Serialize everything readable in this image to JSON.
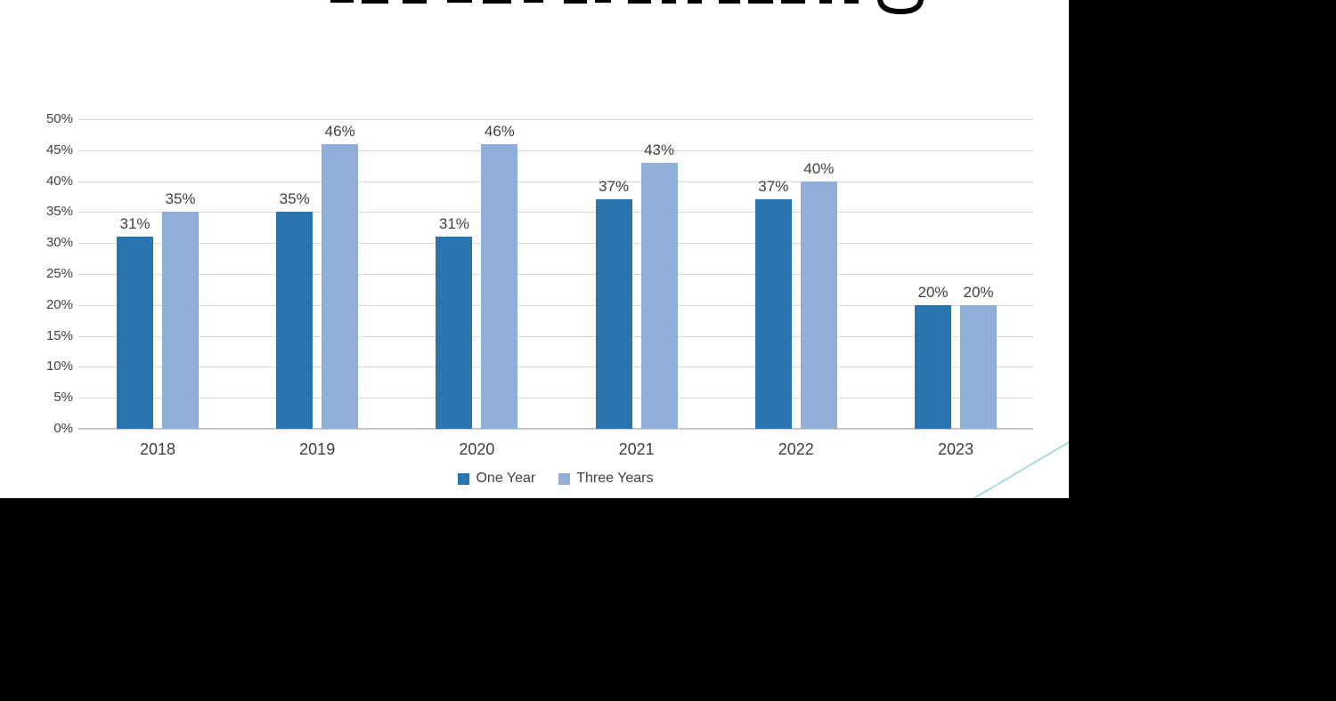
{
  "chart_data": {
    "type": "bar",
    "categories": [
      "2018",
      "2019",
      "2020",
      "2021",
      "2022",
      "2023"
    ],
    "series": [
      {
        "name": "One Year",
        "color": "#2A73AE",
        "values": [
          31,
          35,
          31,
          37,
          37,
          20
        ]
      },
      {
        "name": "Three Years",
        "color": "#8FAFD8",
        "values": [
          35,
          46,
          46,
          43,
          40,
          20
        ]
      }
    ],
    "value_suffix": "%",
    "data_labels": true,
    "y_ticks": [
      "0%",
      "5%",
      "10%",
      "15%",
      "20%",
      "25%",
      "30%",
      "35%",
      "40%",
      "45%",
      "50%"
    ],
    "ylim": [
      0,
      50
    ],
    "xlabel": "",
    "ylabel": "",
    "grid": true,
    "legend_position": "bottom",
    "note": "slide title cut off at top edge; only letter fragments visible"
  },
  "colors": {
    "background": "#FFFFFF",
    "letterbox": "#000000",
    "gridline": "#D9D9D9",
    "axis_line": "#C8C8C8",
    "text": "#404040",
    "series_dark_blue": "#2A73AE",
    "series_light_blue": "#8FAFD8",
    "deco_line_teal": "#A8D7E0",
    "title_fragment": "#000000"
  }
}
